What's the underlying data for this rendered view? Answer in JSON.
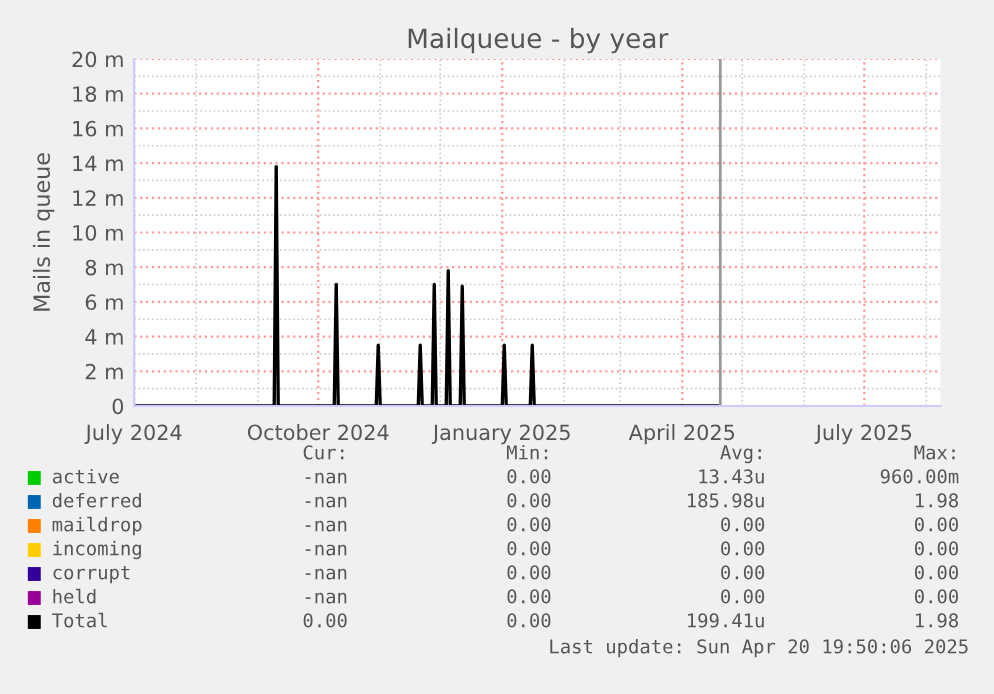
{
  "chart_data": {
    "type": "line",
    "title": "Mailqueue - by year",
    "ylabel": "Mails in queue",
    "x": [
      "2024-07-01",
      "2024-09-09",
      "2024-09-10",
      "2024-09-11",
      "2024-10-09",
      "2024-10-10",
      "2024-10-11",
      "2024-10-30",
      "2024-10-31",
      "2024-11-01",
      "2024-11-20",
      "2024-11-21",
      "2024-11-22",
      "2024-11-27",
      "2024-11-28",
      "2024-11-29",
      "2024-12-04",
      "2024-12-05",
      "2024-12-06",
      "2024-12-11",
      "2024-12-12",
      "2024-12-13",
      "2025-01-01",
      "2025-01-02",
      "2025-01-03",
      "2025-01-15",
      "2025-01-16",
      "2025-01-17",
      "2025-04-20"
    ],
    "series": [
      {
        "name": "active",
        "color": "#00cc00",
        "values": [
          null,
          null,
          null,
          null,
          null,
          null,
          null,
          null,
          null,
          null,
          null,
          null,
          null,
          null,
          null,
          null,
          null,
          null,
          null,
          null,
          null,
          null,
          null,
          null,
          null,
          null,
          null,
          null,
          null
        ]
      },
      {
        "name": "deferred",
        "color": "#0066b3",
        "values": [
          null,
          null,
          null,
          null,
          null,
          null,
          null,
          null,
          null,
          null,
          null,
          null,
          null,
          null,
          null,
          null,
          null,
          null,
          null,
          null,
          null,
          null,
          null,
          null,
          null,
          null,
          null,
          null,
          null
        ]
      },
      {
        "name": "maildrop",
        "color": "#ff8000",
        "values": [
          null,
          null,
          null,
          null,
          null,
          null,
          null,
          null,
          null,
          null,
          null,
          null,
          null,
          null,
          null,
          null,
          null,
          null,
          null,
          null,
          null,
          null,
          null,
          null,
          null,
          null,
          null,
          null,
          null
        ]
      },
      {
        "name": "incoming",
        "color": "#ffcc00",
        "values": [
          null,
          null,
          null,
          null,
          null,
          null,
          null,
          null,
          null,
          null,
          null,
          null,
          null,
          null,
          null,
          null,
          null,
          null,
          null,
          null,
          null,
          null,
          null,
          null,
          null,
          null,
          null,
          null,
          null
        ]
      },
      {
        "name": "corrupt",
        "color": "#330099",
        "values": [
          null,
          null,
          null,
          null,
          null,
          null,
          null,
          null,
          null,
          null,
          null,
          null,
          null,
          null,
          null,
          null,
          null,
          null,
          null,
          null,
          null,
          null,
          null,
          null,
          null,
          null,
          null,
          null,
          null
        ]
      },
      {
        "name": "held",
        "color": "#990099",
        "values": [
          null,
          null,
          null,
          null,
          null,
          null,
          null,
          null,
          null,
          null,
          null,
          null,
          null,
          null,
          null,
          null,
          null,
          null,
          null,
          null,
          null,
          null,
          null,
          null,
          null,
          null,
          null,
          null,
          null
        ]
      },
      {
        "name": "Total",
        "color": "#000000",
        "values": [
          0,
          0,
          13.8,
          0,
          0,
          7.0,
          0,
          0,
          3.5,
          0,
          0,
          3.5,
          0,
          0,
          7.0,
          0,
          0,
          7.8,
          0,
          0,
          6.9,
          0,
          0,
          3.5,
          0,
          0,
          3.5,
          0,
          0
        ]
      }
    ],
    "xlim": [
      "2024-07-01",
      "2025-08-08"
    ],
    "xticks": [
      {
        "value": "2024-07-01",
        "label": "July 2024"
      },
      {
        "value": "2024-10-01",
        "label": "October 2024"
      },
      {
        "value": "2025-01-01",
        "label": "January 2025"
      },
      {
        "value": "2025-04-01",
        "label": "April 2025"
      },
      {
        "value": "2025-07-01",
        "label": "July 2025"
      }
    ],
    "ylim": [
      0,
      20
    ],
    "yticks": [
      0,
      {
        "value": 2,
        "label": "2 m"
      },
      {
        "value": 4,
        "label": "4 m"
      },
      {
        "value": 6,
        "label": "6 m"
      },
      {
        "value": 8,
        "label": "8 m"
      },
      {
        "value": 10,
        "label": "10 m"
      },
      {
        "value": 12,
        "label": "12 m"
      },
      {
        "value": 14,
        "label": "14 m"
      },
      {
        "value": 16,
        "label": "16 m"
      },
      {
        "value": 18,
        "label": "18 m"
      },
      {
        "value": 20,
        "label": "20 m"
      }
    ],
    "ref_lines": [
      {
        "axis": "x",
        "value": "2025-04-20",
        "color": "#999999"
      }
    ],
    "grid": true,
    "legend": "bottom",
    "annotations": [
      "Cur:",
      "Min:",
      "Avg:",
      "Max:",
      "-nan",
      "0.00",
      "13.43u",
      "960.00m",
      "-nan",
      "0.00",
      "185.98u",
      "1.98",
      "-nan",
      "0.00",
      "0.00",
      "0.00",
      "-nan",
      "0.00",
      "0.00",
      "0.00",
      "-nan",
      "0.00",
      "0.00",
      "0.00",
      "-nan",
      "0.00",
      "0.00",
      "0.00",
      "0.00",
      "0.00",
      "199.41u",
      "1.98",
      "Last update: Sun Apr 20 19:50:06 2025"
    ]
  }
}
